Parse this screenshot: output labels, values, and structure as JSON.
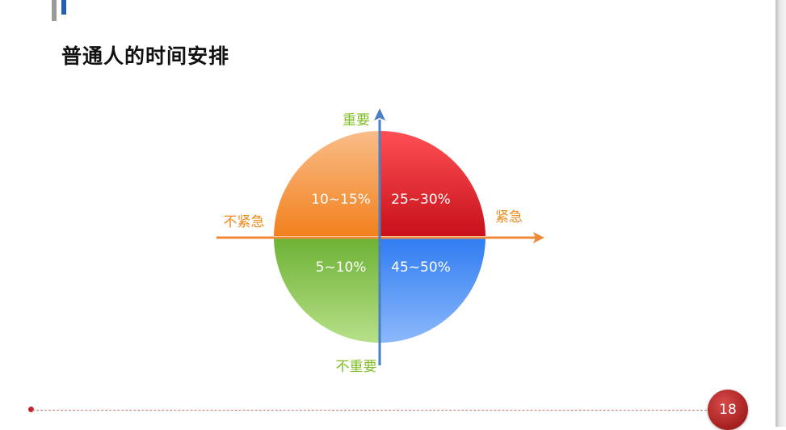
{
  "title": "普通人的时间安排",
  "page_number": "18",
  "axes": {
    "top": "重要",
    "bottom": "不重要",
    "left": "不紧急",
    "right": "紧急"
  },
  "quadrants": {
    "important_not_urgent": {
      "label": "10~15%",
      "color": "#f6953c"
    },
    "important_urgent": {
      "label": "25~30%",
      "color": "#e8232b"
    },
    "unimportant_not_urgent": {
      "label": "5~10%",
      "color": "#7ec24a"
    },
    "unimportant_urgent": {
      "label": "45~50%",
      "color": "#3d86f5"
    }
  },
  "colors": {
    "vertical_axis": "#4a7ec5",
    "horizontal_axis": "#ef8a3a",
    "vertical_labels": "#7cbd21",
    "horizontal_labels": "#ef8a1c"
  }
}
